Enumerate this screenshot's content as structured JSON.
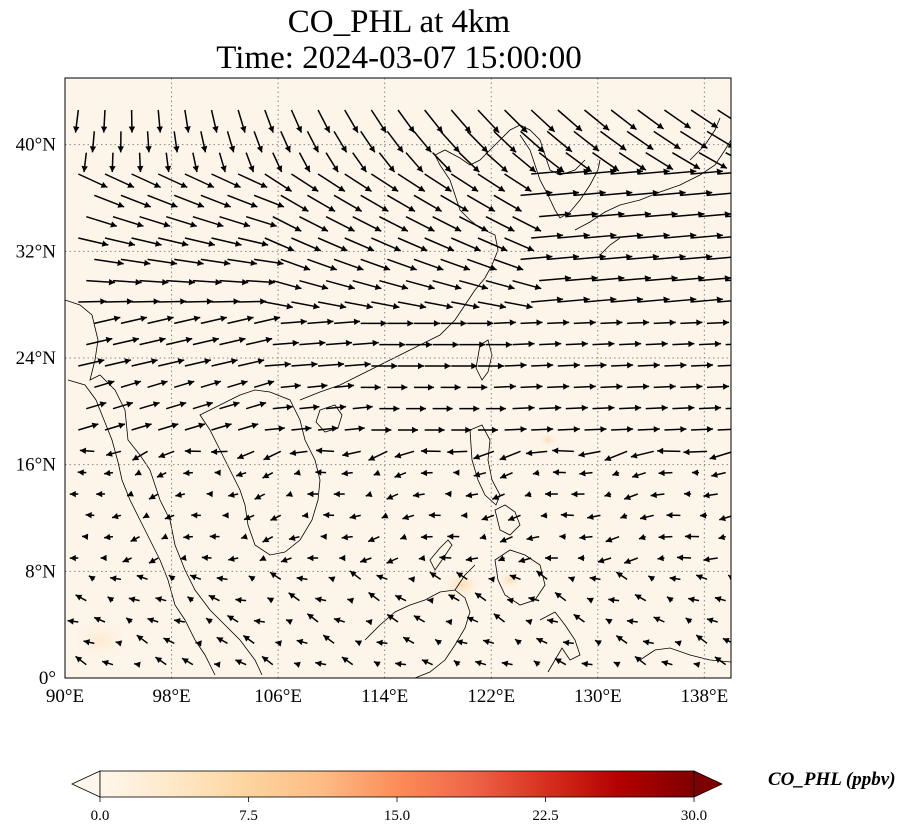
{
  "title": {
    "line1": "CO_PHL at 4km",
    "line2": "Time: 2024-03-07 15:00:00"
  },
  "map": {
    "background_color": "#fdf5ea",
    "lon_range": [
      90,
      140
    ],
    "lat_range": [
      0,
      45
    ],
    "grid_lines": "dotted",
    "lon_ticks": [
      {
        "value": 90,
        "label": "90°E"
      },
      {
        "value": 98,
        "label": "98°E"
      },
      {
        "value": 106,
        "label": "106°E"
      },
      {
        "value": 114,
        "label": "114°E"
      },
      {
        "value": 122,
        "label": "122°E"
      },
      {
        "value": 130,
        "label": "130°E"
      },
      {
        "value": 138,
        "label": "138°E"
      }
    ],
    "lat_ticks": [
      {
        "value": 0,
        "label": "0°"
      },
      {
        "value": 8,
        "label": "8°N"
      },
      {
        "value": 16,
        "label": "16°N"
      },
      {
        "value": 24,
        "label": "24°N"
      },
      {
        "value": 32,
        "label": "32°N"
      },
      {
        "value": 40,
        "label": "40°N"
      }
    ],
    "wind_vectors": "black arrows",
    "hotspots_color": "#fde0b8"
  },
  "colorbar": {
    "label": "CO_PHL (ppbv)",
    "min": 0,
    "max": 30,
    "colormap": "OrRd",
    "extend": "both",
    "ticks": [
      {
        "value": 0,
        "label": "0.0"
      },
      {
        "value": 7.5,
        "label": "7.5"
      },
      {
        "value": 15,
        "label": "15.0"
      },
      {
        "value": 22.5,
        "label": "22.5"
      },
      {
        "value": 30,
        "label": "30.0"
      }
    ]
  }
}
